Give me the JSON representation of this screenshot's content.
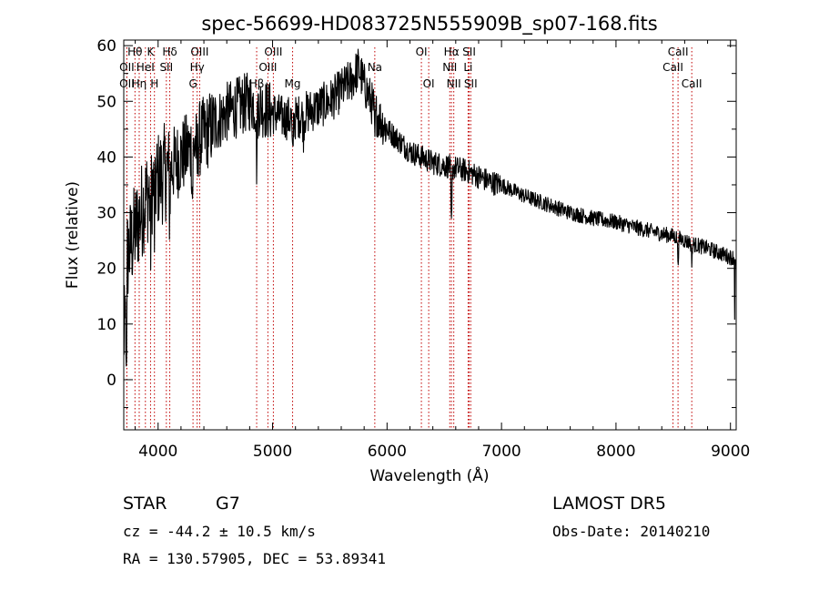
{
  "chart_data": {
    "type": "line",
    "title": "spec-56699-HD083725N555909B_sp07-168.fits",
    "xlabel": "Wavelength (Å)",
    "ylabel": "Flux (relative)",
    "xlim": [
      3700,
      9050
    ],
    "ylim": [
      -9,
      61
    ],
    "x_ticks": [
      4000,
      5000,
      6000,
      7000,
      8000,
      9000
    ],
    "y_ticks": [
      0,
      10,
      20,
      30,
      40,
      50,
      60
    ],
    "grid": false,
    "continuum": {
      "x": [
        3700,
        3760,
        3820,
        3880,
        3950,
        4000,
        4100,
        4200,
        4300,
        4400,
        4500,
        4600,
        4700,
        4800,
        4900,
        5000,
        5100,
        5200,
        5300,
        5400,
        5500,
        5600,
        5700,
        5750,
        5800,
        5900,
        6000,
        6100,
        6200,
        6300,
        6400,
        6500,
        6600,
        6700,
        6800,
        6900,
        7000,
        7200,
        7400,
        7600,
        7800,
        8000,
        8200,
        8400,
        8500,
        8600,
        8700,
        8800,
        8900,
        9000,
        9050
      ],
      "y": [
        20,
        24,
        28,
        32,
        35,
        36,
        38,
        40,
        42,
        44,
        46,
        48,
        49,
        50,
        49,
        48,
        47,
        47,
        48,
        49,
        50,
        52,
        54,
        56,
        53,
        48,
        45,
        43,
        41,
        40,
        39,
        38.5,
        38,
        37.5,
        36.5,
        35.5,
        35,
        33,
        31.5,
        30,
        29,
        28.3,
        27.2,
        26.2,
        25.8,
        25,
        24.2,
        23.6,
        22.8,
        22,
        22
      ]
    },
    "absorption_features": [
      {
        "x": 3934,
        "depth": 10
      },
      {
        "x": 3969,
        "depth": 9
      },
      {
        "x": 4101,
        "depth": 7
      },
      {
        "x": 4300,
        "depth": 9
      },
      {
        "x": 4340,
        "depth": 5
      },
      {
        "x": 4861,
        "depth": 10
      },
      {
        "x": 5175,
        "depth": 8
      },
      {
        "x": 5270,
        "depth": 3
      },
      {
        "x": 5893,
        "depth": 5
      },
      {
        "x": 6563,
        "depth": 11
      },
      {
        "x": 8542,
        "depth": 4
      },
      {
        "x": 8662,
        "depth": 3
      }
    ],
    "line_markers": [
      {
        "label": "Hθ",
        "x": 3798,
        "row": 0
      },
      {
        "label": "OII",
        "x": 3727,
        "row": 1
      },
      {
        "label": "OII",
        "x": 3727,
        "row": 2
      },
      {
        "label": "K",
        "x": 3934,
        "row": 0
      },
      {
        "label": "HeI",
        "x": 3889,
        "row": 1
      },
      {
        "label": "Hη",
        "x": 3835,
        "row": 2
      },
      {
        "label": "Hδ",
        "x": 4102,
        "row": 0
      },
      {
        "label": "SII",
        "x": 4072,
        "row": 1
      },
      {
        "label": "H",
        "x": 3968,
        "row": 2
      },
      {
        "label": "OIII",
        "x": 4363,
        "row": 0
      },
      {
        "label": "Hγ",
        "x": 4341,
        "row": 1
      },
      {
        "label": "G",
        "x": 4305,
        "row": 2
      },
      {
        "label": "OIII",
        "x": 5007,
        "row": 0
      },
      {
        "label": "OIII",
        "x": 4959,
        "row": 1
      },
      {
        "label": "Hβ",
        "x": 4861,
        "row": 2
      },
      {
        "label": "Mg",
        "x": 5175,
        "row": 2
      },
      {
        "label": "Na",
        "x": 5893,
        "row": 1
      },
      {
        "label": "OI",
        "x": 6300,
        "row": 0
      },
      {
        "label": "OI",
        "x": 6364,
        "row": 2
      },
      {
        "label": "Hα",
        "x": 6563,
        "row": 0
      },
      {
        "label": "SII",
        "x": 6717,
        "row": 0
      },
      {
        "label": "NII",
        "x": 6548,
        "row": 1
      },
      {
        "label": "Li",
        "x": 6708,
        "row": 1
      },
      {
        "label": "NII",
        "x": 6583,
        "row": 2
      },
      {
        "label": "SII",
        "x": 6731,
        "row": 2
      },
      {
        "label": "CaII",
        "x": 8542,
        "row": 0
      },
      {
        "label": "CaII",
        "x": 8498,
        "row": 1
      },
      {
        "label": "CaII",
        "x": 8662,
        "row": 2
      }
    ],
    "marker_color": "#c00000",
    "line_color": "#000000"
  },
  "footer": {
    "object_class": "STAR",
    "subclass": "G7",
    "survey": "LAMOST  DR5",
    "redshift": "cz = -44.2 ± 10.5 km/s",
    "obs_date": "Obs-Date: 20140210",
    "coords": "RA = 130.57905, DEC =  53.89341"
  }
}
